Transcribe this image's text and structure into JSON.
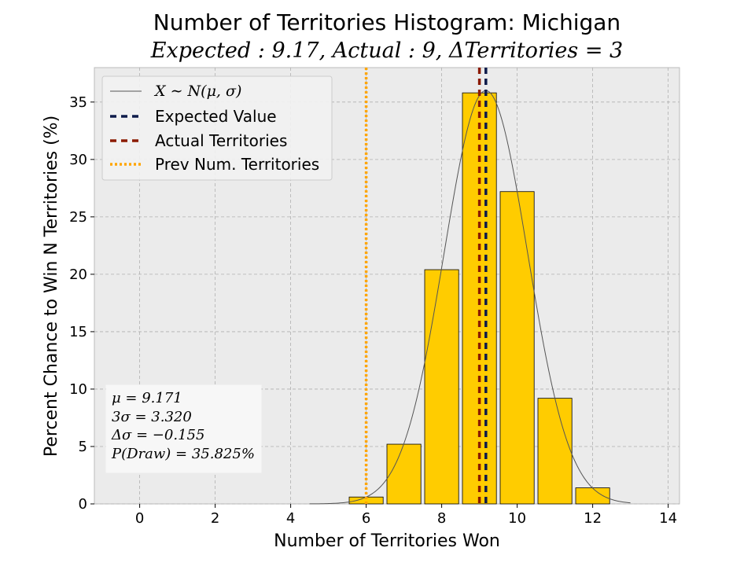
{
  "chart_data": {
    "type": "bar",
    "title": "Number of Territories Histogram: Michigan",
    "subtitle": "Expected : 9.17, Actual : 9, ΔTerritories = 3",
    "xlabel": "Number of Territories Won",
    "ylabel": "Percent Chance to Win N Territories (%)",
    "xlim": [
      -1.2,
      14.3
    ],
    "ylim": [
      0,
      38
    ],
    "xticks": [
      0,
      2,
      4,
      6,
      8,
      10,
      12,
      14
    ],
    "yticks": [
      0,
      5,
      10,
      15,
      20,
      25,
      30,
      35
    ],
    "grid": true,
    "bar_color": "#ffcc00",
    "bar_edge_color": "#000000",
    "background_color": "#ebebeb",
    "categories": [
      6,
      7,
      8,
      9,
      10,
      11,
      12
    ],
    "values": [
      0.6,
      5.2,
      20.4,
      35.8,
      27.2,
      9.2,
      1.4
    ],
    "normal_curve": {
      "mu": 9.171,
      "sigma": 1.107,
      "peak": 36.0,
      "x_range": [
        4.5,
        13.0
      ],
      "color": "#555555"
    },
    "vlines": [
      {
        "x": 6,
        "style": "dotted",
        "color": "#ffa500",
        "label": "Prev Num. Territories"
      },
      {
        "x": 9,
        "style": "dashed",
        "color": "#8b1a00",
        "label": "Actual Territories"
      },
      {
        "x": 9.171,
        "style": "dashed",
        "color": "#0d1b4a",
        "label": "Expected Value"
      }
    ],
    "legend": {
      "position": "top-left",
      "entries": [
        {
          "label": "X ∼ N(μ, σ)",
          "style": "thin-line",
          "color": "#555555"
        },
        {
          "label": "Expected Value",
          "style": "dashed",
          "color": "#0d1b4a"
        },
        {
          "label": "Actual Territories",
          "style": "dashed",
          "color": "#8b1a00"
        },
        {
          "label": "Prev Num. Territories",
          "style": "dotted",
          "color": "#ffa500"
        }
      ]
    },
    "stats_box": {
      "position": "bottom-left",
      "lines": [
        "μ = 9.171",
        "3σ = 3.320",
        "Δσ = −0.155",
        "P(Draw) = 35.825%"
      ]
    }
  }
}
